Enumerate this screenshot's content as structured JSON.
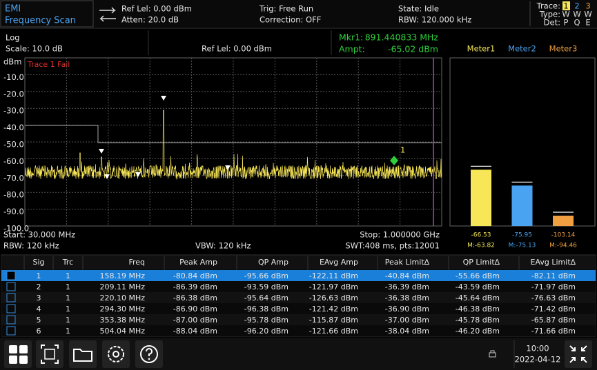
{
  "header": {
    "mode": "EMI",
    "title": "Frequency Scan",
    "ref_level": "Ref Lel: 0.00 dBm",
    "atten": "Atten: 20.0 dB",
    "trig": "Trig: Free Run",
    "correction": "Correction: OFF",
    "state": "State: Idle",
    "rbw": "RBW: 120.000 kHz",
    "trace_label": "Trace:",
    "trace_numbers": [
      "1",
      "2",
      "3"
    ],
    "type_label": "Type:",
    "types": [
      "W",
      "W",
      "W"
    ],
    "det_label": "Det:",
    "dets": [
      "P",
      "Q",
      "E"
    ]
  },
  "info": {
    "scale_type": "Log",
    "scale": "Scale: 10.0 dB",
    "ref_level": "Ref Lel: 0.00 dBm",
    "marker_label": "Mkr1:",
    "marker_freq": "891.440833 MHz",
    "ampt_label": "Ampt:",
    "ampt_value": "-65.02 dBm"
  },
  "spectrum": {
    "unit": "dBm",
    "status": "Trace 1 Fail",
    "yticks": [
      {
        "value": -10,
        "label": "-10.0"
      },
      {
        "value": -20,
        "label": "-20.0"
      },
      {
        "value": -30,
        "label": "-30.0"
      },
      {
        "value": -40,
        "label": "-40.0"
      },
      {
        "value": -50,
        "label": "-50.0"
      },
      {
        "value": -60,
        "label": "-60.0"
      },
      {
        "value": -70,
        "label": "-70.0"
      },
      {
        "value": -80,
        "label": "-80.0"
      },
      {
        "value": -90,
        "label": "-90.0"
      },
      {
        "value": -100,
        "label": "-100.0"
      }
    ],
    "marker_number": "1",
    "start": "Start: 30.000 MHz",
    "stop": "Stop: 1.000000 GHz",
    "rbw": "RBW: 120 kHz",
    "vbw": "VBW: 120 kHz",
    "swt": "SWT:408 ms, pts:12001"
  },
  "meters": [
    {
      "name": "Meter1",
      "color": "#f7e657",
      "value": -66.53,
      "max_label": "M:-63.82"
    },
    {
      "name": "Meter2",
      "color": "#4aa3f0",
      "value": -75.95,
      "max_label": "M:-75.13"
    },
    {
      "name": "Meter3",
      "color": "#f0a040",
      "value": -103.14,
      "max_label": "M:-94.46"
    }
  ],
  "table": {
    "columns": [
      "Sig",
      "Trc",
      "Freq",
      "Peak Amp",
      "QP Amp",
      "EAvg Amp",
      "Peak Limit∆",
      "QP Limit∆",
      "EAvg Limit∆"
    ],
    "rows": [
      [
        "1",
        "1",
        "158.19 MHz",
        "-80.84 dBm",
        "-95.66 dBm",
        "-122.11 dBm",
        "-40.84 dBm",
        "-55.66 dBm",
        "-82.11 dBm"
      ],
      [
        "2",
        "1",
        "209.11 MHz",
        "-86.39 dBm",
        "-93.59 dBm",
        "-121.97 dBm",
        "-36.39 dBm",
        "-43.59 dBm",
        "-71.97 dBm"
      ],
      [
        "3",
        "1",
        "220.10 MHz",
        "-86.38 dBm",
        "-95.64 dBm",
        "-126.63 dBm",
        "-36.38 dBm",
        "-45.64 dBm",
        "-76.63 dBm"
      ],
      [
        "4",
        "1",
        "294.30 MHz",
        "-86.90 dBm",
        "-96.38 dBm",
        "-121.42 dBm",
        "-36.90 dBm",
        "-46.38 dBm",
        "-71.42 dBm"
      ],
      [
        "5",
        "1",
        "353.38 MHz",
        "-87.00 dBm",
        "-95.78 dBm",
        "-115.87 dBm",
        "-37.00 dBm",
        "-45.78 dBm",
        "-65.87 dBm"
      ],
      [
        "6",
        "1",
        "504.04 MHz",
        "-88.04 dBm",
        "-96.20 dBm",
        "-121.66 dBm",
        "-38.04 dBm",
        "-46.20 dBm",
        "-71.66 dBm"
      ]
    ]
  },
  "footer": {
    "time": "10:00",
    "date": "2022-04-12"
  }
}
